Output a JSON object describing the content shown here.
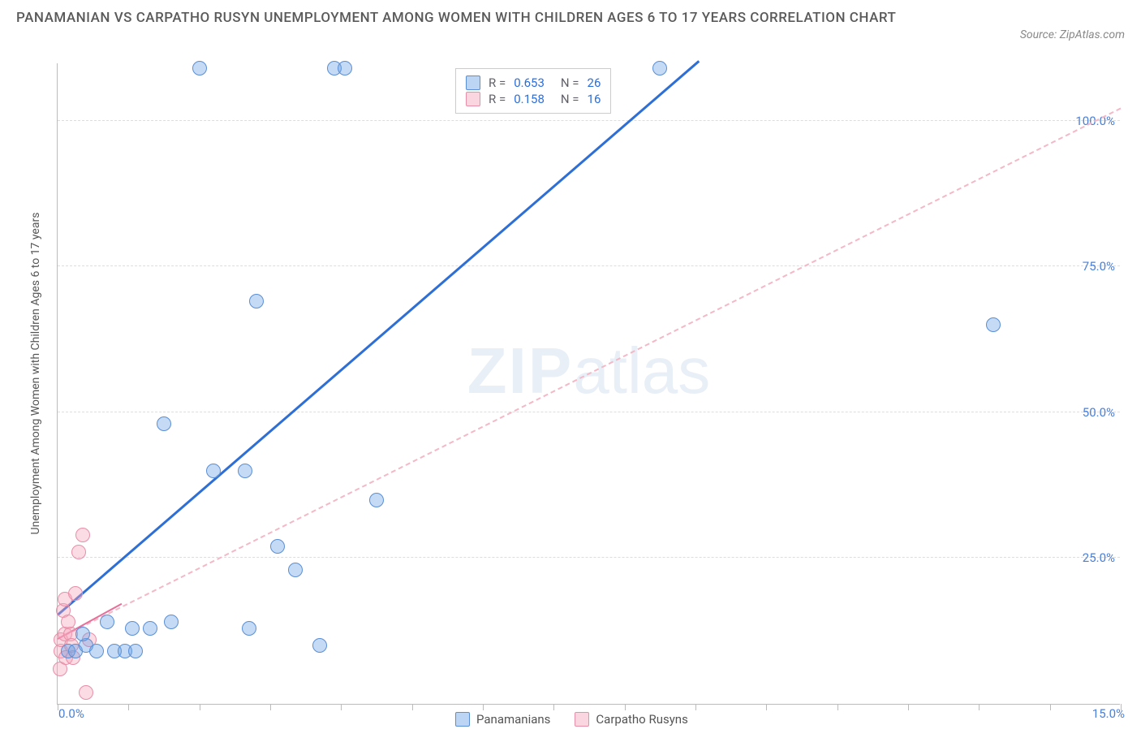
{
  "title": "PANAMANIAN VS CARPATHO RUSYN UNEMPLOYMENT AMONG WOMEN WITH CHILDREN AGES 6 TO 17 YEARS CORRELATION CHART",
  "source": "Source: ZipAtlas.com",
  "watermark_zip": "ZIP",
  "watermark_atlas": "atlas",
  "chart": {
    "type": "scatter",
    "xlim": [
      0,
      15
    ],
    "ylim": [
      0,
      110
    ],
    "y_gridlines": [
      25,
      50,
      75,
      100
    ],
    "y_gridline_labels": [
      "25.0%",
      "50.0%",
      "75.0%",
      "100.0%"
    ],
    "x_min_label": "0.0%",
    "x_max_label": "15.0%",
    "x_ticks": [
      0,
      1,
      2,
      3,
      4,
      5,
      6,
      7,
      8,
      9,
      10,
      11,
      12,
      13,
      14,
      15
    ],
    "y_axis_label": "Unemployment Among Women with Children Ages 6 to 17 years",
    "background_color": "#ffffff",
    "grid_color": "#dddddd",
    "axis_color": "#bbbbbb",
    "marker_radius": 9,
    "series": [
      {
        "name": "Panamanians",
        "color_fill": "rgba(108,162,231,0.4)",
        "color_border": "#5a8fd6",
        "R": "0.653",
        "N": "26",
        "points": [
          [
            0.15,
            9
          ],
          [
            0.25,
            9
          ],
          [
            0.4,
            10
          ],
          [
            0.35,
            12
          ],
          [
            0.55,
            9
          ],
          [
            0.7,
            14
          ],
          [
            0.8,
            9
          ],
          [
            0.95,
            9
          ],
          [
            1.1,
            9
          ],
          [
            1.05,
            13
          ],
          [
            1.3,
            13
          ],
          [
            1.6,
            14
          ],
          [
            1.5,
            48
          ],
          [
            2.0,
            109
          ],
          [
            2.2,
            40
          ],
          [
            2.65,
            40
          ],
          [
            2.7,
            13
          ],
          [
            2.8,
            69
          ],
          [
            3.1,
            27
          ],
          [
            3.35,
            23
          ],
          [
            3.7,
            10
          ],
          [
            3.9,
            109
          ],
          [
            4.05,
            109
          ],
          [
            4.5,
            35
          ],
          [
            8.5,
            109
          ],
          [
            13.2,
            65
          ]
        ],
        "trend": {
          "x1": 0,
          "y1": 15,
          "x2": 9.05,
          "y2": 110,
          "style": "solid",
          "color": "#2e6fd6",
          "width": 3
        }
      },
      {
        "name": "Carpatho Rusyns",
        "color_fill": "rgba(244,166,187,0.4)",
        "color_border": "#e78fa8",
        "R": "0.158",
        "N": "16",
        "points": [
          [
            0.03,
            6
          ],
          [
            0.05,
            9
          ],
          [
            0.05,
            11
          ],
          [
            0.1,
            12
          ],
          [
            0.12,
            8
          ],
          [
            0.08,
            16
          ],
          [
            0.1,
            18
          ],
          [
            0.15,
            14
          ],
          [
            0.18,
            12
          ],
          [
            0.2,
            10
          ],
          [
            0.25,
            19
          ],
          [
            0.22,
            8
          ],
          [
            0.3,
            26
          ],
          [
            0.35,
            29
          ],
          [
            0.4,
            2
          ],
          [
            0.45,
            11
          ]
        ],
        "trend_dashed": {
          "x1": 0,
          "y1": 11,
          "x2": 15,
          "y2": 102,
          "style": "dashed",
          "color": "#f4b8c7",
          "width": 2
        },
        "trend_solid": {
          "x1": 0,
          "y1": 11,
          "x2": 0.9,
          "y2": 17,
          "style": "solid",
          "color": "#e76f9a",
          "width": 2.5
        }
      }
    ]
  },
  "legend_top": {
    "rows": [
      {
        "swatch": "blue",
        "r_label": "R =",
        "r_val": "0.653",
        "n_label": "N =",
        "n_val": "26"
      },
      {
        "swatch": "pink",
        "r_label": "R =",
        "r_val": "0.158",
        "n_label": "N =",
        "n_val": "16"
      }
    ]
  },
  "legend_bottom": {
    "items": [
      {
        "swatch": "blue",
        "label": "Panamanians"
      },
      {
        "swatch": "pink",
        "label": "Carpatho Rusyns"
      }
    ]
  }
}
